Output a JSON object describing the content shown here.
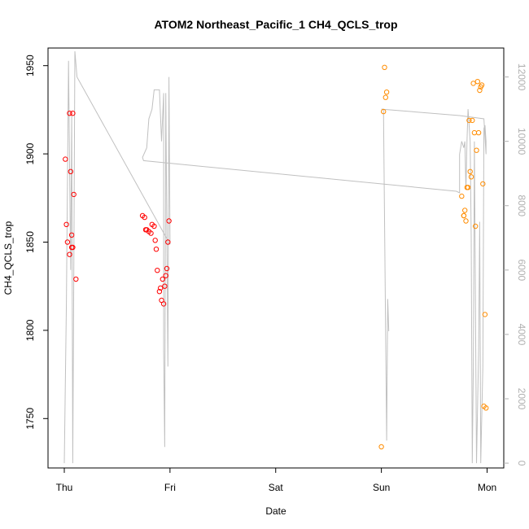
{
  "chart_data": {
    "type": "scatter",
    "title": "ATOM2 Northeast_Pacific_1 CH4_QCLS_trop",
    "xlabel": "Date",
    "ylabel": "CH4_QCLS_trop",
    "x_ticks": [
      "Thu",
      "Fri",
      "Sat",
      "Sun",
      "Mon"
    ],
    "xlim": [
      0,
      4.1
    ],
    "ylim": [
      1722,
      1960
    ],
    "y_ticks": [
      1750,
      1800,
      1850,
      1900,
      1950
    ],
    "y2lim": [
      -150,
      12900
    ],
    "y2_ticks": [
      0,
      2000,
      4000,
      6000,
      8000,
      10000,
      12000
    ],
    "colors": {
      "series_1": "#ff0000",
      "series_2": "#ff8c00",
      "altitude_line": "#c0c0c0"
    },
    "series": [
      {
        "points": [
          [
            0.01,
            1897
          ],
          [
            0.02,
            1860
          ],
          [
            0.03,
            1850
          ],
          [
            0.05,
            1923
          ],
          [
            0.05,
            1843
          ],
          [
            0.06,
            1890
          ],
          [
            0.07,
            1854
          ],
          [
            0.07,
            1847
          ],
          [
            0.08,
            1847
          ],
          [
            0.08,
            1923
          ],
          [
            0.09,
            1877
          ],
          [
            0.11,
            1829
          ],
          [
            0.74,
            1865
          ],
          [
            0.76,
            1864
          ],
          [
            0.77,
            1857
          ],
          [
            0.78,
            1857
          ],
          [
            0.8,
            1856
          ],
          [
            0.82,
            1855
          ],
          [
            0.83,
            1860
          ],
          [
            0.85,
            1859
          ],
          [
            0.86,
            1851
          ],
          [
            0.87,
            1846
          ],
          [
            0.88,
            1834
          ],
          [
            0.9,
            1822
          ],
          [
            0.91,
            1824
          ],
          [
            0.92,
            1817
          ],
          [
            0.93,
            1829
          ],
          [
            0.94,
            1815
          ],
          [
            0.95,
            1825
          ],
          [
            0.96,
            1831
          ],
          [
            0.97,
            1835
          ],
          [
            0.98,
            1850
          ],
          [
            0.99,
            1862
          ]
        ]
      },
      {
        "points": [
          [
            3.0,
            1734
          ],
          [
            3.02,
            1924
          ],
          [
            3.03,
            1949
          ],
          [
            3.04,
            1932
          ],
          [
            3.05,
            1935
          ],
          [
            3.76,
            1876
          ],
          [
            3.78,
            1865
          ],
          [
            3.78,
            1865
          ],
          [
            3.79,
            1868
          ],
          [
            3.8,
            1862
          ],
          [
            3.81,
            1881
          ],
          [
            3.82,
            1881
          ],
          [
            3.83,
            1919
          ],
          [
            3.84,
            1890
          ],
          [
            3.85,
            1887
          ],
          [
            3.86,
            1919
          ],
          [
            3.87,
            1940
          ],
          [
            3.88,
            1912
          ],
          [
            3.89,
            1859
          ],
          [
            3.9,
            1902
          ],
          [
            3.91,
            1941
          ],
          [
            3.92,
            1912
          ],
          [
            3.93,
            1936
          ],
          [
            3.94,
            1938
          ],
          [
            3.95,
            1939
          ],
          [
            3.96,
            1883
          ],
          [
            3.97,
            1757
          ],
          [
            3.98,
            1809
          ],
          [
            3.99,
            1756
          ]
        ]
      }
    ],
    "altitude_line": [
      [
        0.0,
        0
      ],
      [
        0.02,
        5000
      ],
      [
        0.04,
        12500
      ],
      [
        0.06,
        6000
      ],
      [
        0.07,
        10800
      ],
      [
        0.08,
        0
      ],
      [
        0.09,
        6000
      ],
      [
        0.1,
        12800
      ],
      [
        0.12,
        12000
      ],
      [
        1.0,
        6800
      ],
      [
        0.99,
        12000
      ],
      [
        0.98,
        3000
      ],
      [
        0.96,
        11500
      ],
      [
        0.95,
        500
      ],
      [
        0.94,
        3500
      ],
      [
        0.94,
        11500
      ],
      [
        0.92,
        10000
      ],
      [
        0.9,
        11600
      ],
      [
        0.85,
        11600
      ],
      [
        0.83,
        11000
      ],
      [
        0.8,
        10700
      ],
      [
        0.78,
        9800
      ],
      [
        0.74,
        9500
      ],
      [
        0.75,
        9400
      ],
      [
        3.71,
        8450
      ],
      [
        3.74,
        8400
      ],
      [
        3.74,
        9600
      ],
      [
        3.76,
        10000
      ],
      [
        3.78,
        9800
      ],
      [
        3.79,
        10000
      ],
      [
        3.8,
        8500
      ],
      [
        3.81,
        10000
      ],
      [
        3.82,
        11000
      ],
      [
        3.84,
        10000
      ],
      [
        3.85,
        7000
      ],
      [
        3.86,
        0
      ],
      [
        3.87,
        3000
      ],
      [
        3.88,
        10000
      ],
      [
        3.9,
        0
      ],
      [
        3.92,
        3500
      ],
      [
        3.93,
        7500
      ],
      [
        3.94,
        0
      ],
      [
        3.96,
        3000
      ],
      [
        3.97,
        10400
      ],
      [
        3.98,
        10500
      ],
      [
        3.99,
        10000
      ],
      [
        3.99,
        9600
      ],
      [
        3.97,
        10700
      ],
      [
        3.74,
        10800
      ],
      [
        3.0,
        11000
      ],
      [
        3.02,
        11000
      ],
      [
        3.05,
        700
      ],
      [
        3.06,
        5100
      ],
      [
        3.07,
        4100
      ]
    ]
  }
}
